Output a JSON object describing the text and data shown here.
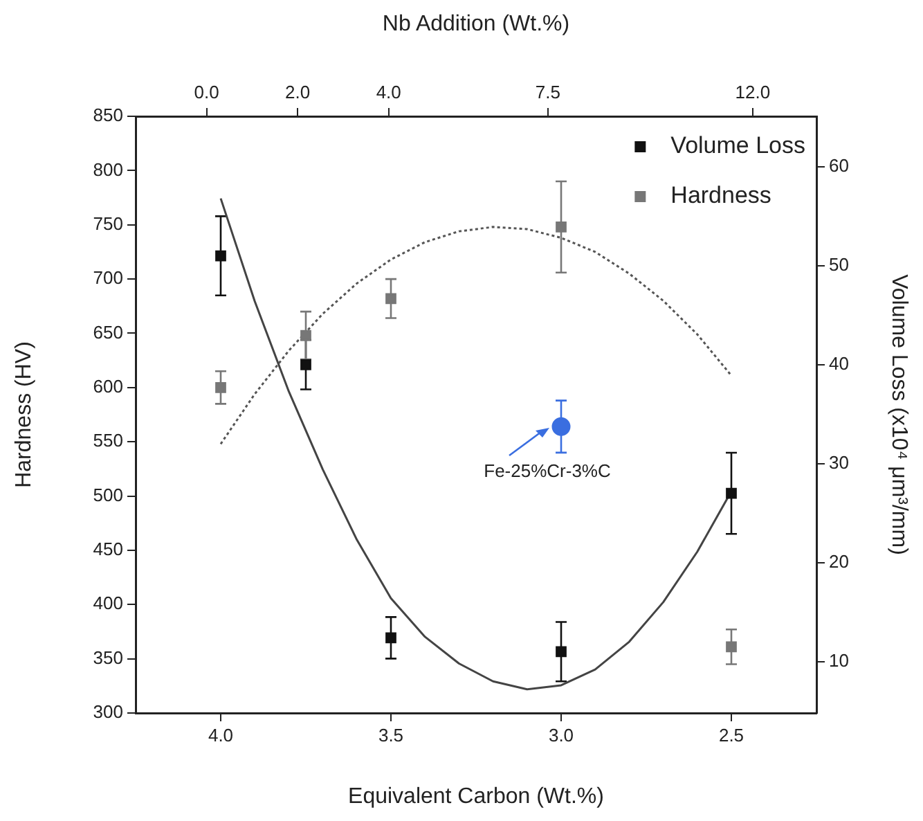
{
  "chart_data": {
    "type": "scatter",
    "xlabel": "Equivalent Carbon (Wt.%)",
    "x2label": "Nb Addition (Wt.%)",
    "ylabel": "Hardness (HV)",
    "y2label": "Volume Loss (x10⁴ μm³/mm)",
    "x": [
      4.0,
      3.75,
      3.5,
      3.0,
      2.5
    ],
    "xlim": [
      4.25,
      2.25
    ],
    "xticks": [
      {
        "value": 4,
        "label": "4.0"
      },
      {
        "value": 3.5,
        "label": "3.5"
      },
      {
        "value": 3,
        "label": "3.0"
      },
      {
        "value": 2.5,
        "label": "2.5"
      }
    ],
    "x2lim": [
      -1.56,
      13.4
    ],
    "x2ticks": [
      {
        "value": 0,
        "label": "0.0"
      },
      {
        "value": 2,
        "label": "2.0"
      },
      {
        "value": 4,
        "label": "4.0"
      },
      7.5,
      {
        "value": 12,
        "label": "12.0"
      }
    ],
    "ylim": [
      300,
      850
    ],
    "yticks": [
      300,
      350,
      400,
      450,
      500,
      550,
      600,
      650,
      700,
      750,
      800,
      850
    ],
    "y2lim": [
      4.8,
      65.1
    ],
    "y2ticks": [
      10,
      20,
      30,
      40,
      50,
      60
    ],
    "grid": false,
    "legend": "top right",
    "marker": "square",
    "annotations": [
      {
        "text": "Fe-25%Cr-3%C",
        "x": 3.0,
        "y": 564
      }
    ],
    "series": [
      {
        "name": "Volume Loss",
        "axis": "y2",
        "color": "#111111",
        "values": [
          51,
          40,
          12.4,
          11,
          27
        ],
        "errors": [
          4,
          2.5,
          2.1,
          3,
          4.1
        ]
      },
      {
        "name": "Hardness",
        "color": "#777777",
        "values": [
          600,
          648,
          682,
          748,
          361
        ],
        "errors": [
          15,
          22,
          18,
          42,
          16
        ]
      },
      {
        "type": "line",
        "axis": "y2",
        "color": "#444444",
        "marker": "none",
        "line_style": "solid",
        "x": [
          4.0,
          3.9,
          3.8,
          3.7,
          3.6,
          3.5,
          3.4,
          3.3,
          3.2,
          3.1,
          3.0,
          2.9,
          2.8,
          2.7,
          2.6,
          2.5
        ],
        "values": [
          56.8,
          46.4,
          37.3,
          29.4,
          22.3,
          16.4,
          12.5,
          9.8,
          8.0,
          7.2,
          7.6,
          9.2,
          12.0,
          16.0,
          21.1,
          27.2
        ]
      },
      {
        "type": "line",
        "color": "#555555",
        "marker": "none",
        "line_style": "dotted",
        "x": [
          4.0,
          3.9,
          3.8,
          3.7,
          3.6,
          3.5,
          3.4,
          3.3,
          3.2,
          3.1,
          3.0,
          2.9,
          2.8,
          2.7,
          2.6,
          2.5
        ],
        "values": [
          548,
          594,
          634,
          668,
          696,
          718,
          734,
          744,
          748,
          746,
          738,
          725,
          705,
          680,
          649,
          611
        ]
      },
      {
        "color": "#3a6ee0",
        "marker": "circle",
        "x": [
          3.0
        ],
        "values": [
          564
        ],
        "errors": [
          24
        ]
      }
    ]
  }
}
